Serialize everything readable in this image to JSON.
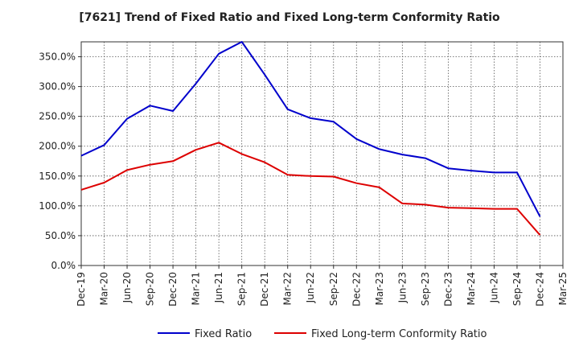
{
  "chart_data": {
    "type": "line",
    "title": "[7621]  Trend of Fixed Ratio and Fixed Long-term Conformity Ratio",
    "xlabel": "",
    "ylabel": "",
    "ylim": [
      0,
      375
    ],
    "yticks": [
      0,
      50,
      100,
      150,
      200,
      250,
      300,
      350
    ],
    "ytick_labels": [
      "0.0%",
      "50.0%",
      "100.0%",
      "150.0%",
      "200.0%",
      "250.0%",
      "300.0%",
      "350.0%"
    ],
    "x_tick_labels": [
      "Dec-19",
      "Mar-20",
      "Jun-20",
      "Sep-20",
      "Dec-20",
      "Mar-21",
      "Jun-21",
      "Sep-21",
      "Dec-21",
      "Mar-22",
      "Jun-22",
      "Sep-22",
      "Dec-22",
      "Mar-23",
      "Jun-23",
      "Sep-23",
      "Dec-23",
      "Mar-24",
      "Jun-24",
      "Sep-24",
      "Dec-24",
      "Mar-25"
    ],
    "x": [
      "Dec-19",
      "Mar-20",
      "Jun-20",
      "Sep-20",
      "Dec-20",
      "Mar-21",
      "Jun-21",
      "Sep-21",
      "Dec-21",
      "Mar-22",
      "Jun-22",
      "Sep-22",
      "Dec-22",
      "Mar-23",
      "Jun-23",
      "Sep-23",
      "Dec-23",
      "Mar-24",
      "Jun-24",
      "Sep-24",
      "Dec-24"
    ],
    "grid": true,
    "legend_position": "bottom",
    "series": [
      {
        "name": "Fixed Ratio",
        "color": "#0000cc",
        "values": [
          184,
          202,
          246,
          268,
          259,
          305,
          355,
          375,
          320,
          262,
          247,
          241,
          212,
          195,
          186,
          180,
          163,
          159,
          156,
          156,
          82
        ]
      },
      {
        "name": "Fixed Long-term Conformity Ratio",
        "color": "#dd0000",
        "values": [
          127,
          139,
          160,
          169,
          175,
          194,
          206,
          187,
          173,
          152,
          150,
          149,
          138,
          131,
          104,
          102,
          97,
          96,
          95,
          95,
          51
        ]
      }
    ]
  }
}
